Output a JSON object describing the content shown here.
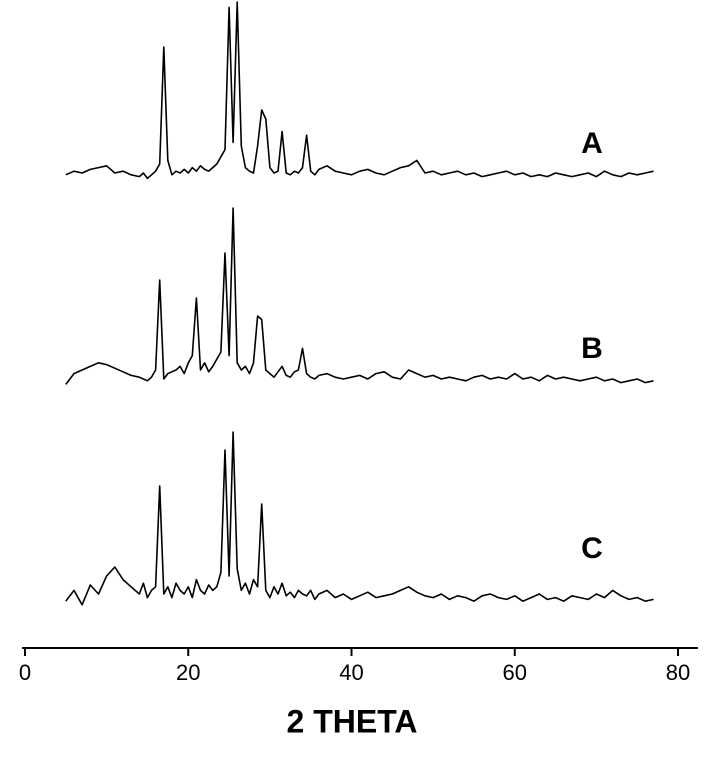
{
  "chart_data": {
    "type": "line",
    "x_label": "2 THETA",
    "x": [
      5,
      6,
      7,
      8,
      9,
      10,
      11,
      12,
      13,
      14,
      14.5,
      15,
      15.5,
      16,
      16.5,
      17,
      17.5,
      18,
      18.5,
      19,
      19.5,
      20,
      20.5,
      21,
      21.5,
      22,
      22.5,
      23,
      23.5,
      24,
      24.5,
      25,
      25.5,
      26,
      26.5,
      27,
      27.5,
      28,
      28.5,
      29,
      29.5,
      30,
      30.5,
      31,
      31.5,
      32,
      32.5,
      33,
      33.5,
      34,
      34.5,
      35,
      35.5,
      36,
      37,
      38,
      39,
      40,
      41,
      42,
      43,
      44,
      45,
      46,
      47,
      48,
      49,
      50,
      51,
      52,
      53,
      54,
      55,
      56,
      57,
      58,
      59,
      60,
      61,
      62,
      63,
      64,
      65,
      66,
      67,
      68,
      69,
      70,
      71,
      72,
      73,
      74,
      75,
      76,
      77
    ],
    "series": [
      {
        "name": "A",
        "color": "#000000",
        "values": [
          4,
          6,
          5,
          7,
          8,
          9,
          5,
          6,
          4,
          3,
          5,
          2,
          4,
          6,
          10,
          75,
          12,
          4,
          6,
          5,
          7,
          5,
          8,
          6,
          9,
          7,
          6,
          8,
          10,
          14,
          18,
          97,
          22,
          100,
          20,
          8,
          6,
          5,
          20,
          40,
          35,
          8,
          5,
          6,
          28,
          5,
          4,
          6,
          5,
          8,
          26,
          6,
          4,
          7,
          9,
          6,
          5,
          4,
          6,
          7,
          5,
          4,
          6,
          8,
          9,
          12,
          5,
          6,
          4,
          5,
          6,
          4,
          5,
          3,
          4,
          5,
          6,
          4,
          5,
          3,
          4,
          3,
          5,
          4,
          3,
          4,
          5,
          3,
          6,
          4,
          3,
          5,
          4,
          5,
          6
        ]
      },
      {
        "name": "B",
        "color": "#000000",
        "values": [
          2,
          8,
          10,
          12,
          14,
          13,
          11,
          9,
          7,
          6,
          5,
          4,
          6,
          10,
          60,
          5,
          8,
          9,
          10,
          12,
          8,
          14,
          18,
          50,
          10,
          14,
          9,
          12,
          16,
          20,
          75,
          18,
          100,
          14,
          10,
          12,
          8,
          14,
          40,
          38,
          10,
          8,
          6,
          9,
          12,
          7,
          6,
          9,
          10,
          22,
          8,
          6,
          5,
          7,
          8,
          6,
          5,
          6,
          7,
          5,
          8,
          9,
          6,
          5,
          10,
          8,
          6,
          7,
          5,
          6,
          5,
          4,
          6,
          7,
          5,
          6,
          5,
          8,
          5,
          6,
          4,
          7,
          5,
          6,
          5,
          4,
          5,
          6,
          4,
          5,
          3,
          4,
          5,
          3,
          4
        ]
      },
      {
        "name": "C",
        "color": "#000000",
        "values": [
          6,
          12,
          4,
          15,
          10,
          20,
          25,
          18,
          14,
          10,
          16,
          8,
          12,
          14,
          70,
          10,
          14,
          8,
          16,
          12,
          10,
          14,
          8,
          18,
          12,
          10,
          15,
          12,
          14,
          22,
          90,
          20,
          100,
          24,
          12,
          16,
          10,
          18,
          14,
          60,
          12,
          8,
          14,
          10,
          16,
          9,
          11,
          8,
          12,
          10,
          9,
          12,
          7,
          10,
          12,
          8,
          10,
          7,
          9,
          11,
          8,
          9,
          10,
          12,
          14,
          11,
          9,
          8,
          10,
          7,
          9,
          8,
          6,
          9,
          10,
          8,
          7,
          9,
          6,
          8,
          10,
          7,
          8,
          6,
          9,
          8,
          7,
          10,
          8,
          12,
          9,
          7,
          8,
          6,
          7
        ]
      }
    ],
    "xlim": [
      0,
      80
    ],
    "xticks": [
      0,
      20,
      40,
      60,
      80
    ],
    "ylim": [
      0,
      100
    ]
  }
}
